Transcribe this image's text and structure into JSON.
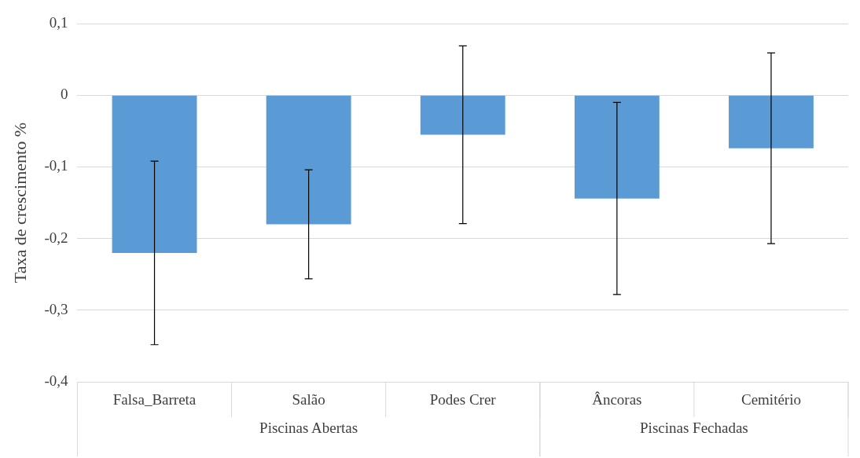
{
  "chart_data": {
    "type": "bar",
    "ylabel": "Taxa de crescimento %",
    "categories": [
      "Falsa_Barreta",
      "Salão",
      "Podes Crer",
      "Âncoras",
      "Cemitério"
    ],
    "values": [
      -0.22,
      -0.18,
      -0.055,
      -0.144,
      -0.074
    ],
    "errors": [
      0.128,
      0.076,
      0.124,
      0.134,
      0.133
    ],
    "color": "#5b9bd5",
    "ylim": [
      -0.4,
      0.1
    ],
    "yticks": [
      {
        "value": -0.4,
        "label": "-0,4"
      },
      {
        "value": -0.3,
        "label": "-0,3"
      },
      {
        "value": -0.2,
        "label": "-0,2"
      },
      {
        "value": -0.1,
        "label": "-0,1"
      },
      0,
      {
        "value": 0.1,
        "label": "0,1"
      }
    ],
    "grid": "y",
    "legend": false,
    "annotations": [
      "Piscinas Abertas",
      "Piscinas Fechadas"
    ]
  }
}
